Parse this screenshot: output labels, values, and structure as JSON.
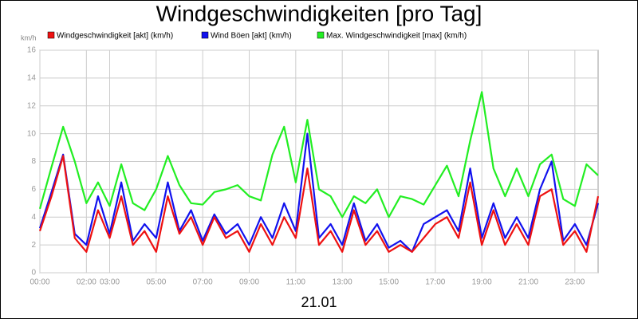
{
  "chart_data": {
    "type": "line",
    "title": "Windgeschwindigkeiten [pro Tag]",
    "y_unit": "km/h",
    "x_label": "21.01",
    "x": [
      0,
      0.5,
      1,
      1.5,
      2,
      2.5,
      3,
      3.5,
      4,
      4.5,
      5,
      5.5,
      6,
      6.5,
      7,
      7.5,
      8,
      8.5,
      9,
      9.5,
      10,
      10.5,
      11,
      11.5,
      12,
      12.5,
      13,
      13.5,
      14,
      14.5,
      15,
      15.5,
      16,
      16.5,
      17,
      17.5,
      18,
      18.5,
      19,
      19.5,
      20,
      20.5,
      21,
      21.5,
      22,
      22.5,
      23,
      23.5,
      24
    ],
    "series": [
      {
        "name": "Windgeschwindigkeit [akt] (km/h)",
        "color": "#ee1111",
        "values": [
          3,
          5.5,
          8.4,
          2.5,
          1.5,
          4.5,
          2.5,
          5.5,
          2,
          3,
          1.5,
          5.5,
          2.8,
          4,
          2,
          4,
          2.5,
          3,
          1.5,
          3.5,
          2,
          4,
          2.5,
          7.5,
          2,
          3,
          1.5,
          4.5,
          2,
          3,
          1.5,
          2,
          1.5,
          2.5,
          3.5,
          4,
          2.5,
          6.5,
          2,
          4.5,
          2,
          3.5,
          2,
          5.5,
          6,
          2,
          3,
          1.5,
          5.5
        ]
      },
      {
        "name": "Wind Böen [akt] (km/h)",
        "color": "#1111ee",
        "values": [
          3.2,
          5.8,
          8.5,
          2.8,
          2,
          5.5,
          2.8,
          6.5,
          2.3,
          3.5,
          2.5,
          6.5,
          3,
          4.5,
          2.3,
          4.2,
          2.8,
          3.5,
          2,
          4,
          2.5,
          5,
          3,
          10,
          2.5,
          3.5,
          2,
          5,
          2.3,
          3.5,
          1.8,
          2.3,
          1.5,
          3.5,
          4,
          4.5,
          3,
          7.5,
          2.5,
          5,
          2.5,
          4,
          2.5,
          6,
          8,
          2.3,
          3.5,
          2,
          5
        ]
      },
      {
        "name": "Max. Windgeschwindigkeit [max] (km/h)",
        "color": "#22ee22",
        "values": [
          4.6,
          7.6,
          10.5,
          8,
          5,
          6.5,
          4.8,
          7.8,
          5,
          4.5,
          6,
          8.4,
          6.3,
          5,
          4.9,
          5.8,
          6,
          6.3,
          5.5,
          5.2,
          8.5,
          10.5,
          6.5,
          11,
          6,
          5.5,
          4,
          5.5,
          5,
          6,
          4,
          5.5,
          5.3,
          4.9,
          6.3,
          7.7,
          5.5,
          9.5,
          13,
          7.5,
          5.5,
          7.5,
          5.5,
          7.8,
          8.5,
          5.3,
          4.8,
          7.8,
          7
        ]
      }
    ],
    "xlim": [
      0,
      24
    ],
    "xticks": [
      {
        "value": 0,
        "label": "00:00"
      },
      {
        "value": 2,
        "label": "02:00"
      },
      {
        "value": 3,
        "label": "03:00"
      },
      {
        "value": 5,
        "label": "05:00"
      },
      {
        "value": 7,
        "label": "07:00"
      },
      {
        "value": 9,
        "label": "09:00"
      },
      {
        "value": 11,
        "label": "11:00"
      },
      {
        "value": 13,
        "label": "13:00"
      },
      {
        "value": 15,
        "label": "15:00"
      },
      {
        "value": 17,
        "label": "17:00"
      },
      {
        "value": 19,
        "label": "19:00"
      },
      {
        "value": 21,
        "label": "21:00"
      },
      {
        "value": 23,
        "label": "23:00"
      }
    ],
    "ylim": [
      0,
      16
    ],
    "yticks": [
      0,
      2,
      4,
      6,
      8,
      10,
      12,
      14,
      16
    ],
    "grid": true
  }
}
